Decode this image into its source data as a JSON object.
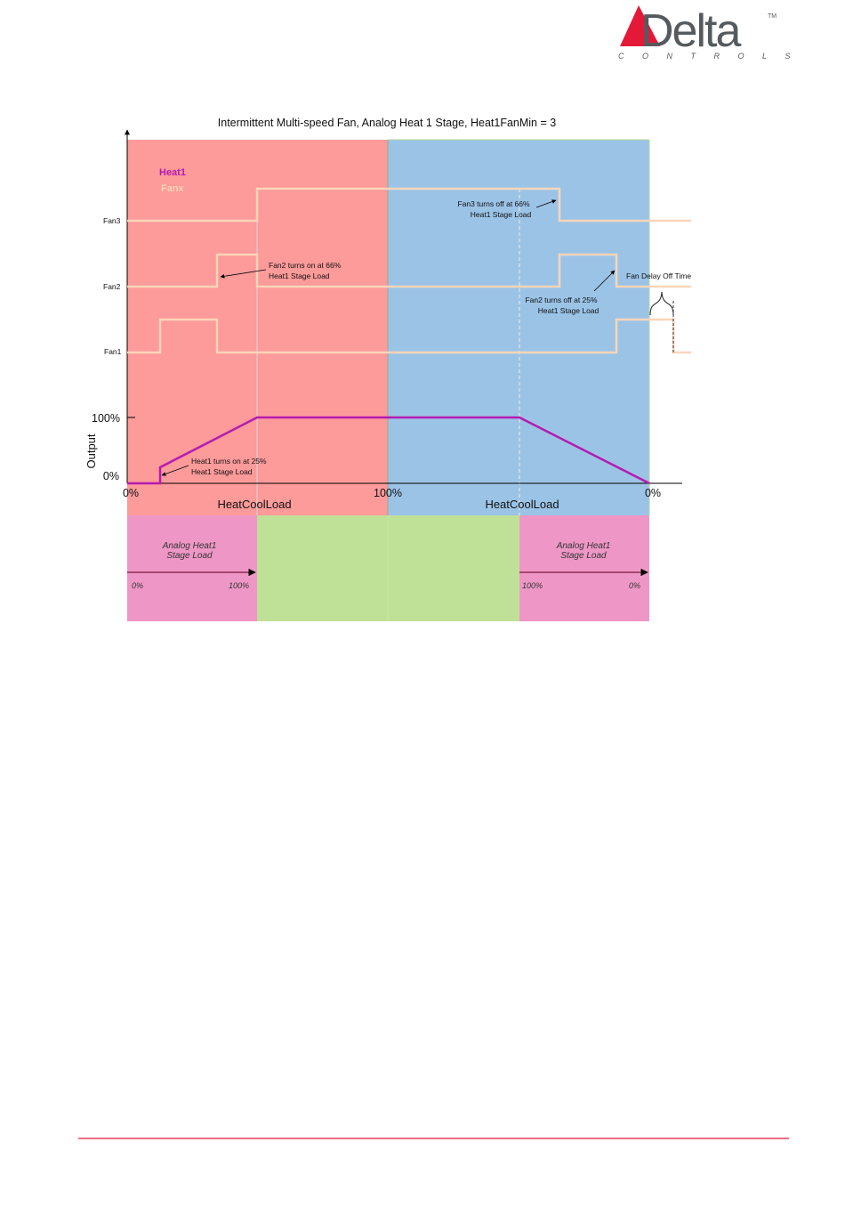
{
  "header": {
    "logo_text": "Delta",
    "logo_subtitle": "C O N T R O L S",
    "logo_tm": "TM"
  },
  "diagram": {
    "title": "Intermittent Multi-speed Fan, Analog Heat 1 Stage, Heat1FanMin = 3",
    "legend": {
      "heat_label": "Heat1",
      "fan_label": "Fanx"
    },
    "fan_labels": {
      "fan3": "Fan3",
      "fan2": "Fan2",
      "fan1": "Fan1"
    },
    "output_axis": {
      "label": "Output",
      "tick_max": "100%",
      "tick_min": "0%"
    },
    "load_axis": {
      "left_tick": "0%",
      "middle_tick": "100%",
      "right_tick": "0%",
      "left_label": "HeatCoolLoad",
      "right_label": "HeatCoolLoad"
    },
    "annotations": {
      "fan3_off_line1": "Fan3 turns off at 66%",
      "fan3_off_line2": "Heat1 Stage Load",
      "fan2_on_line1": "Fan2 turns on at 66%",
      "fan2_on_line2": "Heat1 Stage Load",
      "fan2_off_line1": "Fan2 turns off at 25%",
      "fan2_off_line2": "Heat1 Stage Load",
      "fan_delay_off": "Fan Delay Off Time",
      "heat1_on_line1": "Heat1 turns on at 25%",
      "heat1_on_line2": "Heat1 Stage Load"
    },
    "stage_load": {
      "left_line1": "Analog Heat1",
      "left_line2": "Stage Load",
      "left_start": "0%",
      "left_end": "100%",
      "right_line1": "Analog Heat1",
      "right_line2": "Stage Load",
      "right_start": "100%",
      "right_end": "0%"
    },
    "colors": {
      "heating_region": "#fd9a9a",
      "cooling_region": "#9bc3e6",
      "stage_region": "#ee97c6",
      "full_output_region": "#bfe197",
      "fan_line": "#fbd5b9",
      "heat_line": "#b51bb0",
      "logo_red": "#e31937",
      "footer_rule": "#e31937"
    }
  }
}
